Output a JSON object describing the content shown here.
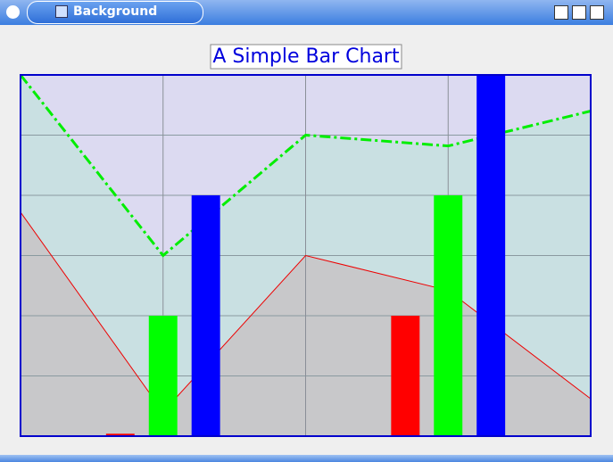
{
  "window": {
    "title": "Background"
  },
  "chart_data": {
    "type": "bar",
    "title": "A Simple Bar Chart",
    "xlim": [
      0,
      4
    ],
    "xticks": [
      1,
      2,
      3
    ],
    "ylim": [
      0,
      3
    ],
    "yticks": [
      0.5,
      1,
      1.5,
      2,
      2.5
    ],
    "grid": true,
    "background": "#dcdaf1",
    "series": [
      {
        "type": "line",
        "color": "#00ee00",
        "fill": "#c9e0e2",
        "x": [
          0,
          1,
          2,
          3,
          4
        ],
        "values": [
          3,
          1.5,
          2.5,
          2.41,
          2.7
        ]
      },
      {
        "type": "line",
        "color": "#ee0000",
        "fill": "#c8c8ca",
        "x": [
          0,
          1,
          2,
          3,
          4
        ],
        "values": [
          1.86,
          0.2,
          1.5,
          1.21,
          0.31
        ]
      },
      {
        "type": "bar",
        "color": "#ff0000",
        "x": [
          0.7,
          2.7
        ],
        "values": [
          0.02,
          1
        ]
      },
      {
        "type": "bar",
        "color": "#00ff00",
        "x": [
          1,
          3
        ],
        "values": [
          1,
          2
        ]
      },
      {
        "type": "bar",
        "color": "#0000ff",
        "x": [
          1.3,
          3.3
        ],
        "values": [
          2,
          3
        ]
      }
    ]
  }
}
